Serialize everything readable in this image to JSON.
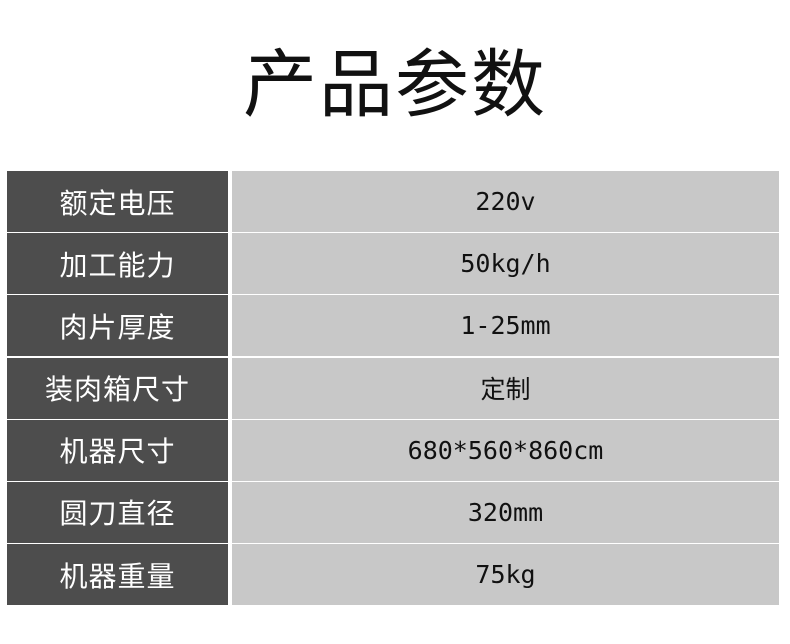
{
  "title": "产品参数",
  "colors": {
    "label_bg": "#4d4d4d",
    "value_bg": "#c8c8c8"
  },
  "rows": [
    {
      "label": "额定电压",
      "value": "220v"
    },
    {
      "label": "加工能力",
      "value": "50kg/h"
    },
    {
      "label": "肉片厚度",
      "value": "1-25mm"
    },
    {
      "label": "装肉箱尺寸",
      "value": "定制"
    },
    {
      "label": "机器尺寸",
      "value": "680*560*860cm"
    },
    {
      "label": "圆刀直径",
      "value": "320mm"
    },
    {
      "label": "机器重量",
      "value": "75kg"
    }
  ]
}
